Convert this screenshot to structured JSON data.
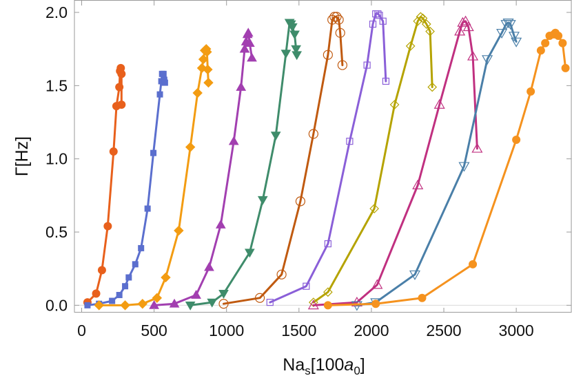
{
  "chart_data": {
    "type": "line",
    "title": "",
    "xlabel": {
      "prefix": "Na",
      "sub1": "s",
      "mid": "[100",
      "italic": "a",
      "sub2": "0",
      "suffix": "]"
    },
    "ylabel": "Γ[Hz]",
    "xlim": [
      -50,
      3380
    ],
    "ylim": [
      -0.05,
      2.08
    ],
    "xticks": [
      0,
      500,
      1000,
      1500,
      2000,
      2500,
      3000
    ],
    "yticks": [
      0.0,
      0.5,
      1.0,
      1.5,
      2.0
    ],
    "ytick_labels": [
      "0.0",
      "0.5",
      "1.0",
      "1.5",
      "2.0"
    ],
    "grid": false,
    "legend": "none",
    "series": [
      {
        "color": "#e8601c",
        "marker": "circle",
        "filled": true,
        "points": [
          [
            40,
            0.02
          ],
          [
            100,
            0.08
          ],
          [
            140,
            0.24
          ],
          [
            180,
            0.54
          ],
          [
            220,
            1.05
          ],
          [
            240,
            1.36
          ],
          [
            260,
            1.49
          ],
          [
            265,
            1.6
          ],
          [
            270,
            1.62
          ],
          [
            275,
            1.58
          ],
          [
            275,
            1.37
          ]
        ]
      },
      {
        "color": "#5b6fce",
        "marker": "square",
        "filled": true,
        "points": [
          [
            40,
            0.0
          ],
          [
            120,
            0.01
          ],
          [
            210,
            0.03
          ],
          [
            260,
            0.07
          ],
          [
            300,
            0.13
          ],
          [
            325,
            0.19
          ],
          [
            370,
            0.28
          ],
          [
            410,
            0.39
          ],
          [
            455,
            0.66
          ],
          [
            495,
            1.04
          ],
          [
            540,
            1.44
          ],
          [
            550,
            1.53
          ],
          [
            555,
            1.58
          ],
          [
            565,
            1.58
          ],
          [
            570,
            1.54
          ],
          [
            575,
            1.52
          ]
        ]
      },
      {
        "color": "#f39c12",
        "marker": "diamond",
        "filled": true,
        "points": [
          [
            120,
            0.0
          ],
          [
            300,
            0.0
          ],
          [
            420,
            0.01
          ],
          [
            520,
            0.05
          ],
          [
            580,
            0.19
          ],
          [
            670,
            0.51
          ],
          [
            750,
            1.08
          ],
          [
            800,
            1.45
          ],
          [
            830,
            1.62
          ],
          [
            840,
            1.68
          ],
          [
            850,
            1.74
          ],
          [
            860,
            1.75
          ],
          [
            865,
            1.73
          ],
          [
            870,
            1.61
          ],
          [
            875,
            1.52
          ]
        ]
      },
      {
        "color": "#a23fb0",
        "marker": "triangle-up",
        "filled": true,
        "points": [
          [
            500,
            0.0
          ],
          [
            640,
            0.01
          ],
          [
            790,
            0.07
          ],
          [
            880,
            0.26
          ],
          [
            960,
            0.55
          ],
          [
            1050,
            1.12
          ],
          [
            1100,
            1.49
          ],
          [
            1125,
            1.75
          ],
          [
            1135,
            1.8
          ],
          [
            1145,
            1.85
          ],
          [
            1150,
            1.86
          ],
          [
            1160,
            1.79
          ],
          [
            1175,
            1.69
          ]
        ]
      },
      {
        "color": "#3f8c6b",
        "marker": "triangle-down",
        "filled": true,
        "points": [
          [
            750,
            0.0
          ],
          [
            900,
            0.02
          ],
          [
            980,
            0.08
          ],
          [
            1160,
            0.36
          ],
          [
            1250,
            0.72
          ],
          [
            1340,
            1.16
          ],
          [
            1410,
            1.72
          ],
          [
            1435,
            1.93
          ],
          [
            1445,
            1.92
          ],
          [
            1455,
            1.9
          ],
          [
            1470,
            1.85
          ],
          [
            1480,
            1.75
          ],
          [
            1485,
            1.71
          ]
        ]
      },
      {
        "color": "#c05a10",
        "marker": "circle",
        "filled": false,
        "points": [
          [
            980,
            0.01
          ],
          [
            1230,
            0.05
          ],
          [
            1380,
            0.21
          ],
          [
            1510,
            0.71
          ],
          [
            1600,
            1.17
          ],
          [
            1700,
            1.71
          ],
          [
            1730,
            1.95
          ],
          [
            1745,
            1.97
          ],
          [
            1760,
            1.97
          ],
          [
            1775,
            1.95
          ],
          [
            1785,
            1.86
          ],
          [
            1800,
            1.64
          ]
        ]
      },
      {
        "color": "#8a5fd8",
        "marker": "square",
        "filled": false,
        "points": [
          [
            1300,
            0.02
          ],
          [
            1550,
            0.13
          ],
          [
            1700,
            0.42
          ],
          [
            1850,
            1.12
          ],
          [
            1970,
            1.64
          ],
          [
            2010,
            1.92
          ],
          [
            2030,
            1.99
          ],
          [
            2045,
            1.99
          ],
          [
            2055,
            1.98
          ],
          [
            2080,
            1.94
          ],
          [
            2100,
            1.53
          ]
        ]
      },
      {
        "color": "#b5a300",
        "marker": "diamond",
        "filled": false,
        "points": [
          [
            1600,
            0.02
          ],
          [
            1700,
            0.09
          ],
          [
            2020,
            0.66
          ],
          [
            2160,
            1.37
          ],
          [
            2270,
            1.77
          ],
          [
            2320,
            1.94
          ],
          [
            2340,
            1.97
          ],
          [
            2355,
            1.96
          ],
          [
            2380,
            1.92
          ],
          [
            2405,
            1.87
          ],
          [
            2420,
            1.49
          ]
        ]
      },
      {
        "color": "#c03080",
        "marker": "triangle-up",
        "filled": false,
        "points": [
          [
            1600,
            0.0
          ],
          [
            1900,
            0.02
          ],
          [
            2040,
            0.14
          ],
          [
            2320,
            0.82
          ],
          [
            2470,
            1.37
          ],
          [
            2610,
            1.87
          ],
          [
            2630,
            1.93
          ],
          [
            2650,
            1.94
          ],
          [
            2670,
            1.9
          ],
          [
            2700,
            1.7
          ],
          [
            2730,
            1.07
          ]
        ]
      },
      {
        "color": "#4a7fa8",
        "marker": "triangle-down",
        "filled": false,
        "points": [
          [
            1900,
            0.0
          ],
          [
            2030,
            0.02
          ],
          [
            2300,
            0.21
          ],
          [
            2640,
            0.95
          ],
          [
            2800,
            1.68
          ],
          [
            2900,
            1.86
          ],
          [
            2930,
            1.92
          ],
          [
            2945,
            1.93
          ],
          [
            2960,
            1.92
          ],
          [
            2985,
            1.84
          ],
          [
            3000,
            1.8
          ]
        ]
      },
      {
        "color": "#f5921e",
        "marker": "circle",
        "filled": true,
        "points": [
          [
            1700,
            0.0
          ],
          [
            2030,
            0.01
          ],
          [
            2350,
            0.05
          ],
          [
            2700,
            0.28
          ],
          [
            3000,
            1.13
          ],
          [
            3100,
            1.46
          ],
          [
            3170,
            1.74
          ],
          [
            3200,
            1.79
          ],
          [
            3230,
            1.84
          ],
          [
            3260,
            1.85
          ],
          [
            3270,
            1.86
          ],
          [
            3290,
            1.84
          ],
          [
            3320,
            1.79
          ],
          [
            3340,
            1.62
          ]
        ]
      }
    ]
  }
}
